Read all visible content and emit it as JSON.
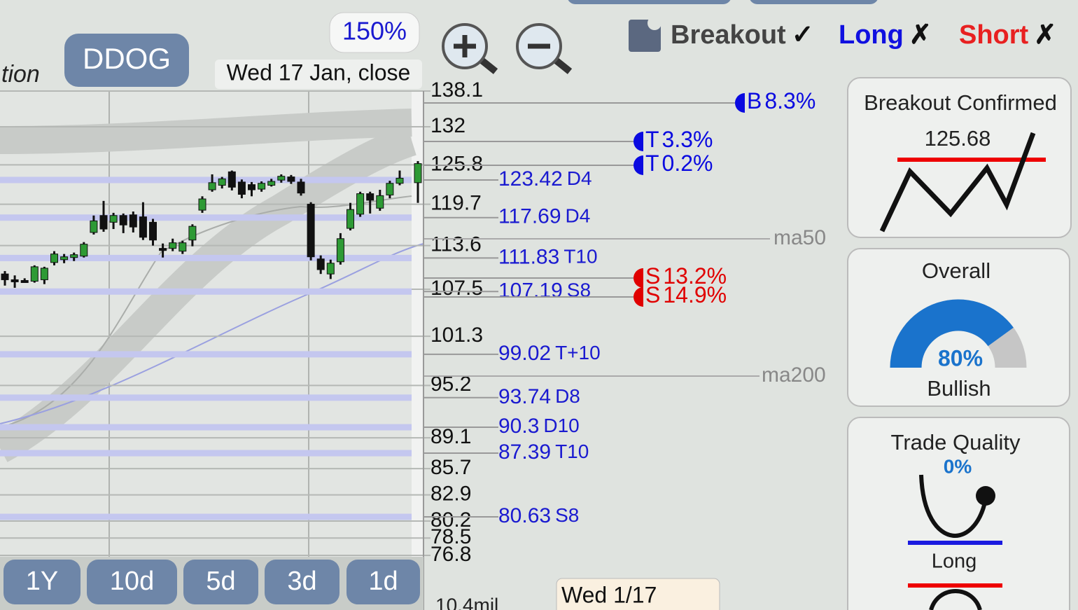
{
  "header": {
    "partial_label": "tion",
    "symbol": "DDOG",
    "zoom": "150%",
    "date_label": "Wed 17 Jan, close"
  },
  "signals": [
    {
      "name": "Breakout",
      "mark": "✓",
      "color": "#444444"
    },
    {
      "name": "Long",
      "mark": "✗",
      "color": "#1010e0"
    },
    {
      "name": "Short",
      "mark": "✗",
      "color": "#e82020"
    }
  ],
  "price_axis": {
    "ylim": [
      76.8,
      138.1
    ],
    "log": true,
    "ticks": [
      138.1,
      132,
      125.8,
      119.7,
      113.6,
      107.5,
      101.3,
      95.2,
      89.1,
      85.7,
      82.9,
      80.2,
      78.5,
      76.8
    ]
  },
  "candles": [
    [
      109.6,
      110.0,
      108.0,
      108.8
    ],
    [
      108.8,
      109.4,
      107.7,
      108.6
    ],
    [
      108.7,
      109.0,
      108.4,
      108.6
    ],
    [
      108.6,
      110.8,
      108.4,
      110.6
    ],
    [
      108.8,
      110.6,
      108.2,
      110.4
    ],
    [
      111.2,
      112.8,
      110.8,
      112.4
    ],
    [
      111.6,
      112.4,
      111.1,
      112.0
    ],
    [
      111.9,
      112.6,
      111.4,
      112.3
    ],
    [
      112.1,
      114.1,
      111.9,
      113.8
    ],
    [
      115.5,
      118.0,
      115.2,
      117.2
    ],
    [
      118.0,
      120.2,
      115.6,
      116.0
    ],
    [
      117.0,
      118.4,
      116.0,
      118.0
    ],
    [
      118.0,
      118.3,
      115.4,
      116.6
    ],
    [
      118.1,
      118.6,
      115.5,
      116.3
    ],
    [
      117.8,
      120.0,
      114.4,
      114.8
    ],
    [
      117.0,
      117.5,
      113.6,
      114.4
    ],
    [
      113.2,
      113.9,
      111.9,
      113.1
    ],
    [
      113.2,
      114.6,
      112.8,
      114.0
    ],
    [
      112.8,
      114.3,
      112.4,
      114.0
    ],
    [
      114.4,
      116.7,
      113.5,
      116.4
    ],
    [
      118.8,
      120.9,
      118.4,
      120.5
    ],
    [
      121.9,
      124.3,
      121.6,
      123.0
    ],
    [
      122.6,
      123.9,
      122.1,
      123.6
    ],
    [
      124.7,
      124.9,
      121.8,
      122.3
    ],
    [
      123.1,
      123.5,
      120.6,
      121.2
    ],
    [
      122.7,
      123.1,
      120.9,
      121.9
    ],
    [
      122.0,
      123.2,
      121.6,
      122.9
    ],
    [
      122.6,
      123.6,
      122.4,
      123.2
    ],
    [
      123.4,
      124.3,
      123.0,
      124.0
    ],
    [
      123.9,
      124.2,
      122.8,
      123.2
    ],
    [
      123.1,
      123.6,
      121.0,
      121.4
    ],
    [
      119.7,
      120.0,
      111.5,
      112.0
    ],
    [
      111.7,
      112.2,
      109.6,
      110.2
    ],
    [
      109.6,
      111.6,
      108.9,
      111.1
    ],
    [
      111.3,
      115.4,
      110.9,
      114.6
    ],
    [
      116.1,
      119.9,
      115.8,
      118.9
    ],
    [
      118.2,
      121.6,
      117.8,
      121.3
    ],
    [
      121.3,
      121.6,
      118.3,
      120.3
    ],
    [
      119.1,
      121.9,
      118.7,
      121.0
    ],
    [
      121.1,
      123.3,
      120.6,
      122.9
    ],
    [
      122.9,
      124.9,
      122.6,
      123.7
    ],
    [
      123.0,
      126.4,
      119.9,
      126.0
    ]
  ],
  "levels": [
    {
      "value": 123.42,
      "tag": "D4"
    },
    {
      "value": 117.69,
      "tag": "D4"
    },
    {
      "value": 111.83,
      "tag": "T10"
    },
    {
      "value": 107.19,
      "tag": "S8"
    },
    {
      "value": 99.02,
      "tag": "T+10"
    },
    {
      "value": 93.74,
      "tag": "D8"
    },
    {
      "value": 90.3,
      "tag": "D10"
    },
    {
      "value": 87.39,
      "tag": "T10"
    },
    {
      "value": 80.63,
      "tag": "S8"
    }
  ],
  "markers": [
    {
      "letter": "B",
      "pct": "8.3%",
      "color": "#0a0ae0"
    },
    {
      "letter": "T",
      "pct": "3.3%",
      "color": "#0a0ae0"
    },
    {
      "letter": "T",
      "pct": "0.2%",
      "color": "#0a0ae0"
    },
    {
      "letter": "S",
      "pct": "13.2%",
      "color": "#e00000"
    },
    {
      "letter": "S",
      "pct": "14.9%",
      "color": "#e00000"
    }
  ],
  "ma_labels": [
    "ma50",
    "ma200"
  ],
  "timeframes": [
    "1Y",
    "10d",
    "5d",
    "3d",
    "1d"
  ],
  "volume_label": "10.4mil",
  "tooltip": "Wed 1/17",
  "panels": {
    "breakout": {
      "title": "Breakout Confirmed",
      "price": "125.68"
    },
    "overall": {
      "title": "Overall",
      "score": {
        "value": 80,
        "label": "80%"
      },
      "verdict": "Bullish"
    },
    "trade_quality": {
      "title": "Trade Quality",
      "score": "0%",
      "direction": "Long"
    }
  }
}
